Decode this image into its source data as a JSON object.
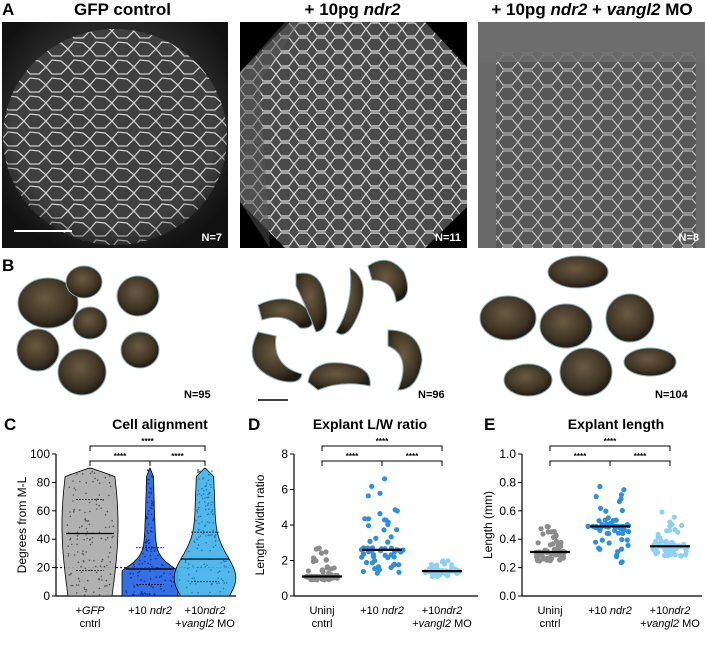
{
  "panels": {
    "A": {
      "letter": "A",
      "images": [
        {
          "title_plain": "GFP control",
          "title_pre": "",
          "title_ital": "",
          "title_post": "",
          "n": "N=7"
        },
        {
          "title_plain": "",
          "title_pre": "+ 10pg ",
          "title_ital": "ndr2",
          "title_post": "",
          "n": "N=11"
        },
        {
          "title_plain": "",
          "title_pre": "+ 10pg ",
          "title_ital": "ndr2",
          "title_mid": " + ",
          "title_ital2": "vangl2",
          "title_post": " MO",
          "n": "N=8"
        }
      ]
    },
    "B": {
      "letter": "B",
      "counts": [
        "N=95",
        "N=96",
        "N=104"
      ]
    },
    "C": {
      "letter": "C"
    },
    "D": {
      "letter": "D"
    },
    "E": {
      "letter": "E"
    }
  },
  "chart_data": [
    {
      "type": "violin",
      "title": "Cell alignment",
      "ylabel": "Degrees from M-L",
      "ylim": [
        0,
        100
      ],
      "yticks": [
        0,
        20,
        40,
        60,
        80,
        100
      ],
      "reference_line": 20,
      "categories": [
        {
          "line1_ital": "+GFP",
          "line1_post": "",
          "line2": "cntrl"
        },
        {
          "line1_pre": "+10 ",
          "line1_ital": "ndr2",
          "line2": ""
        },
        {
          "line1_pre": "+10",
          "line1_ital": "ndr2",
          "line2_pre": "+",
          "line2_ital": "vangl2",
          "line2_post": " MO"
        }
      ],
      "medians": [
        44,
        19,
        26
      ],
      "quartiles": [
        [
          18,
          68
        ],
        [
          8,
          34
        ],
        [
          10,
          45
        ]
      ],
      "colors": [
        "#a8a8a8",
        "#1f5fe0",
        "#3fb0ea"
      ],
      "significance": [
        {
          "pair": [
            0,
            1
          ],
          "label": "****"
        },
        {
          "pair": [
            1,
            2
          ],
          "label": "****"
        },
        {
          "pair": [
            0,
            2
          ],
          "label": "****"
        }
      ]
    },
    {
      "type": "scatter",
      "title": "Explant L/W ratio",
      "ylabel": "Length /Width ratio",
      "ylim": [
        0,
        8
      ],
      "yticks": [
        0,
        2,
        4,
        6,
        8
      ],
      "categories": [
        {
          "line1": "Uninj",
          "line2": "cntrl"
        },
        {
          "line1_pre": "+10 ",
          "line1_ital": "ndr2",
          "line2": ""
        },
        {
          "line1_pre": "+10",
          "line1_ital": "ndr2",
          "line2_pre": "+",
          "line2_ital": "vangl2",
          "line2_post": " MO"
        }
      ],
      "means": [
        1.1,
        2.6,
        1.4
      ],
      "ranges": [
        [
          0.9,
          2.8
        ],
        [
          1.2,
          6.9
        ],
        [
          1.1,
          2.0
        ]
      ],
      "counts": [
        95,
        96,
        104
      ],
      "colors": [
        "#8c8c8c",
        "#2d8fe0",
        "#8fd0f2"
      ],
      "significance": [
        {
          "pair": [
            0,
            1
          ],
          "label": "****"
        },
        {
          "pair": [
            1,
            2
          ],
          "label": "****"
        },
        {
          "pair": [
            0,
            2
          ],
          "label": "****"
        }
      ]
    },
    {
      "type": "scatter",
      "title": "Explant length",
      "ylabel": "Length (mm)",
      "ylim": [
        0.0,
        1.0
      ],
      "yticks": [
        "0.0",
        "0.2",
        "0.4",
        "0.6",
        "0.8",
        "1.0"
      ],
      "categories": [
        {
          "line1": "Uninj",
          "line2": "cntrl"
        },
        {
          "line1_pre": "+10 ",
          "line1_ital": "ndr2",
          "line2": ""
        },
        {
          "line1_pre": "+10",
          "line1_ital": "ndr2",
          "line2_pre": "+",
          "line2_ital": "vangl2",
          "line2_post": " MO"
        }
      ],
      "means": [
        0.31,
        0.49,
        0.35
      ],
      "ranges": [
        [
          0.24,
          0.5
        ],
        [
          0.22,
          0.8
        ],
        [
          0.28,
          0.6
        ]
      ],
      "counts": [
        95,
        96,
        104
      ],
      "colors": [
        "#8c8c8c",
        "#2d8fe0",
        "#8fd0f2"
      ],
      "significance": [
        {
          "pair": [
            0,
            1
          ],
          "label": "****"
        },
        {
          "pair": [
            1,
            2
          ],
          "label": "****"
        },
        {
          "pair": [
            0,
            2
          ],
          "label": "****"
        }
      ]
    }
  ]
}
